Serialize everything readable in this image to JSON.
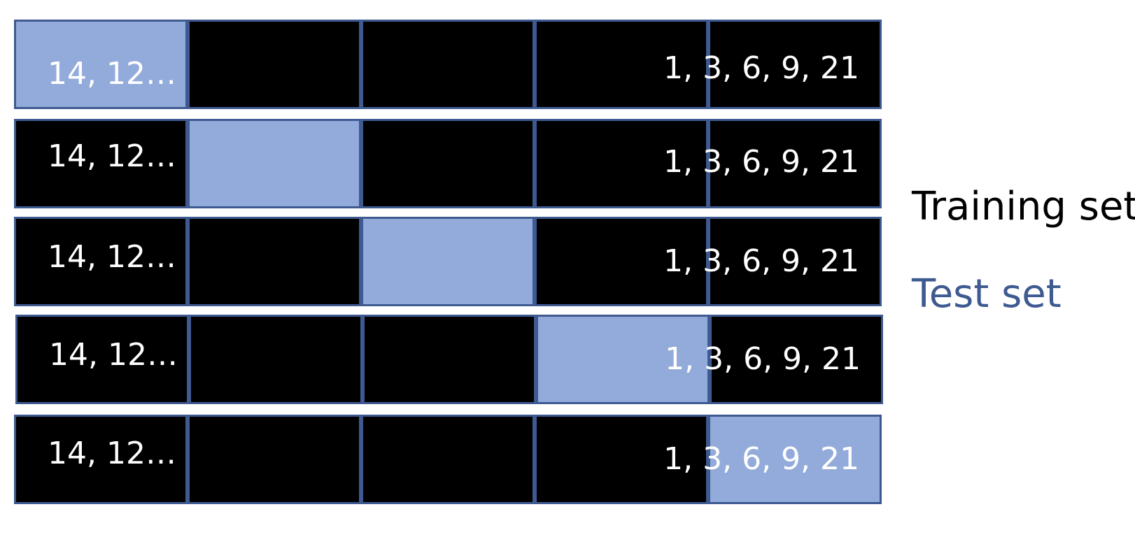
{
  "rows": [
    {
      "left_label": "14, 12…",
      "right_label": "1, 3, 6, 9, 21",
      "test_fold": 1
    },
    {
      "left_label": "14, 12…",
      "right_label": "1, 3, 6, 9, 21",
      "test_fold": 2
    },
    {
      "left_label": "14, 12…",
      "right_label": "1, 3, 6, 9, 21",
      "test_fold": 3
    },
    {
      "left_label": "14, 12…",
      "right_label": "1, 3, 6, 9, 21",
      "test_fold": 4
    },
    {
      "left_label": "14, 12…",
      "right_label": "1, 3, 6, 9, 21",
      "test_fold": 5
    }
  ],
  "legend": {
    "training": "Training set",
    "test": "Test set"
  },
  "colors": {
    "training": "#000000",
    "test": "#93abda",
    "border": "#3e5a91",
    "test_legend_text": "#3e5a91"
  }
}
